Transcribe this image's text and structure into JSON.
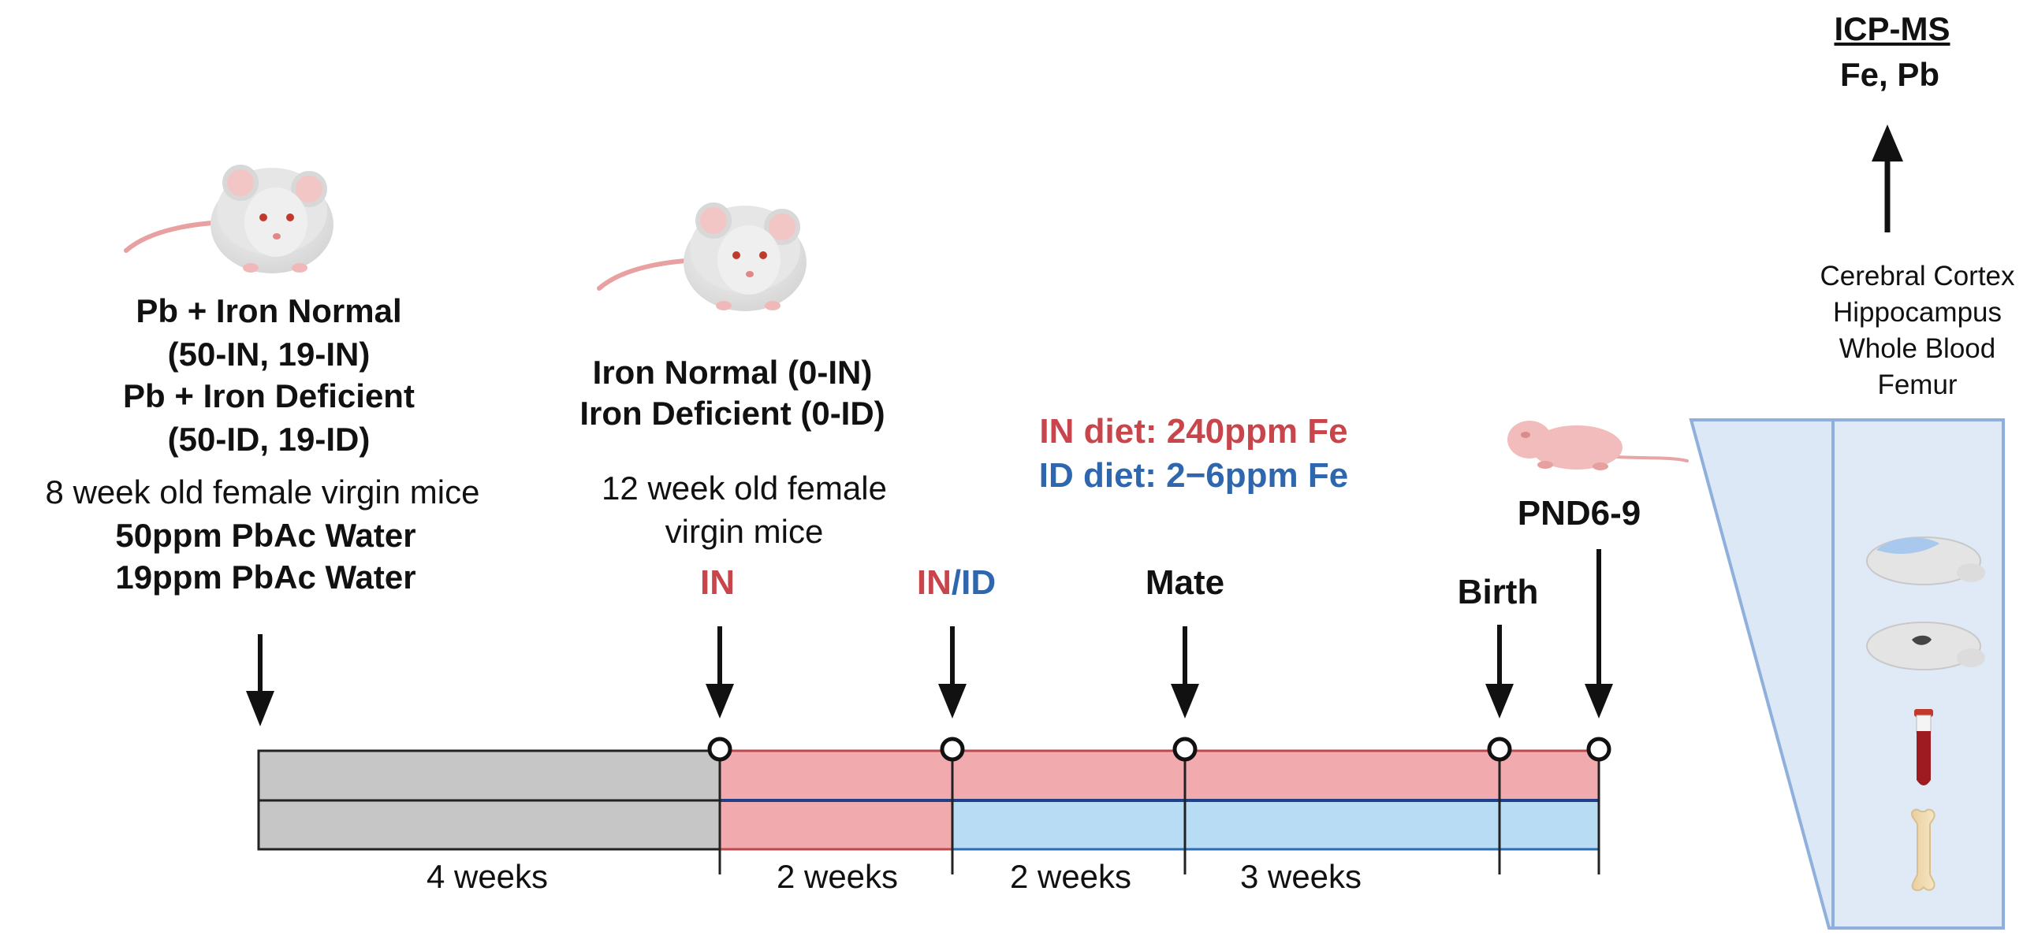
{
  "colors": {
    "red": "#c8464b",
    "blue": "#2f67ae",
    "pink_bar": "#f1abaf",
    "lightblue_bar": "#b7dcf3",
    "gray_bar": "#c6c6c6",
    "panel_border": "#8fb0dc",
    "panel_fill": "#dfeaf6"
  },
  "group1": {
    "line1": "Pb + Iron Normal",
    "line2": "(50-IN, 19-IN)",
    "line3": "Pb + Iron Deficient",
    "line4": "(50-ID, 19-ID)",
    "desc": "8 week old female virgin mice",
    "water1": "50ppm PbAc Water",
    "water2": "19ppm PbAc Water"
  },
  "group2": {
    "line1": "Iron Normal (0-IN)",
    "line2": "Iron Deficient (0-ID)",
    "desc1": "12 week old female",
    "desc2": "virgin mice"
  },
  "diets": {
    "in_diet": "IN diet: 240ppm Fe",
    "id_diet": "ID diet: 2−6ppm Fe"
  },
  "events": {
    "in": "IN",
    "in_part": "IN",
    "slash": "/",
    "id_part": "ID",
    "mate": "Mate",
    "birth": "Birth",
    "pnd": "PND6-9"
  },
  "durations": [
    "4 weeks",
    "2 weeks",
    "2 weeks",
    "3 weeks"
  ],
  "analysis": {
    "title": "ICP-MS",
    "elements": "Fe, Pb",
    "tissues": [
      "Cerebral Cortex",
      "Hippocampus",
      "Whole Blood",
      "Femur"
    ]
  }
}
